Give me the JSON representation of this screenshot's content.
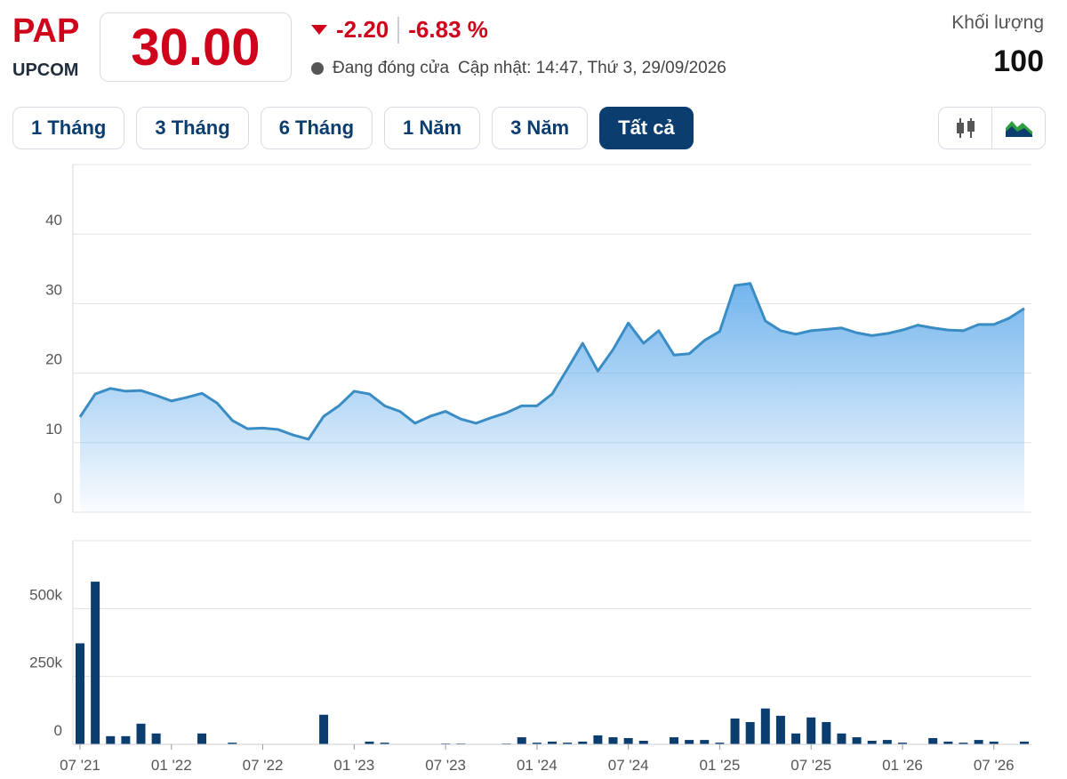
{
  "header": {
    "ticker": "PAP",
    "exchange": "UPCOM",
    "price": "30.00",
    "change": "-2.20",
    "change_percent": "-6.83 %",
    "status": "Đang đóng cửa",
    "updated": "Cập nhật: 14:47, Thứ 3, 29/09/2026",
    "volume_label": "Khối lượng",
    "volume": "100"
  },
  "tabs": {
    "labels": [
      "1 Tháng",
      "3 Tháng",
      "6 Tháng",
      "1 Năm",
      "3 Năm",
      "Tất cả"
    ],
    "active": 5
  },
  "chart_data": [
    {
      "type": "area",
      "color": "#3a8cc4",
      "ylim": [
        0,
        50
      ],
      "yticks": [
        0,
        10,
        20,
        30,
        40
      ],
      "grid": true,
      "values": [
        13.7,
        17.0,
        17.8,
        17.4,
        17.5,
        16.8,
        16.0,
        16.5,
        17.1,
        15.7,
        13.2,
        12.0,
        12.1,
        11.9,
        11.1,
        10.5,
        13.8,
        15.3,
        17.4,
        17.0,
        15.3,
        14.5,
        12.8,
        13.8,
        14.5,
        13.4,
        12.8,
        13.6,
        14.3,
        15.3,
        15.3,
        17.0,
        20.6,
        24.3,
        20.3,
        23.4,
        27.2,
        24.3,
        26.1,
        22.6,
        22.8,
        24.7,
        26.0,
        32.6,
        32.9,
        27.5,
        26.1,
        25.6,
        26.1,
        26.3,
        26.5,
        25.8,
        25.4,
        25.7,
        26.2,
        26.9,
        26.5,
        26.2,
        26.1,
        27.0,
        27.0,
        27.9,
        29.3
      ]
    },
    {
      "type": "bar",
      "color": "#0b3d6e",
      "ylim": [
        0,
        750000
      ],
      "yticks": [
        0,
        {
          "value": 250000,
          "label": "250k"
        },
        {
          "value": 500000,
          "label": "500k"
        }
      ],
      "grid": true,
      "categories": [
        "07 '21",
        null,
        null,
        null,
        null,
        null,
        "01 '22",
        null,
        null,
        null,
        null,
        null,
        "07 '22",
        null,
        null,
        null,
        null,
        null,
        "01 '23",
        null,
        null,
        null,
        null,
        null,
        "07 '23",
        null,
        null,
        null,
        null,
        null,
        "01 '24",
        null,
        null,
        null,
        null,
        null,
        "07 '24",
        null,
        null,
        null,
        null,
        null,
        "01 '25",
        null,
        null,
        null,
        null,
        null,
        "07 '25",
        null,
        null,
        null,
        null,
        null,
        "01 '26",
        null,
        null,
        null,
        null,
        null,
        "07 '26",
        null,
        null
      ],
      "values": [
        372000,
        599000,
        30000,
        30000,
        76000,
        40000,
        0,
        0,
        40000,
        0,
        6000,
        0,
        0,
        0,
        0,
        0,
        109000,
        0,
        0,
        10000,
        6000,
        0,
        0,
        0,
        3000,
        3000,
        0,
        0,
        3000,
        26000,
        6000,
        10000,
        6000,
        10000,
        33000,
        26000,
        23000,
        13000,
        0,
        26000,
        16000,
        16000,
        6000,
        95000,
        82000,
        132000,
        105000,
        40000,
        99000,
        82000,
        40000,
        26000,
        13000,
        16000,
        6000,
        0,
        23000,
        10000,
        6000,
        16000,
        10000,
        0,
        10000
      ]
    }
  ]
}
